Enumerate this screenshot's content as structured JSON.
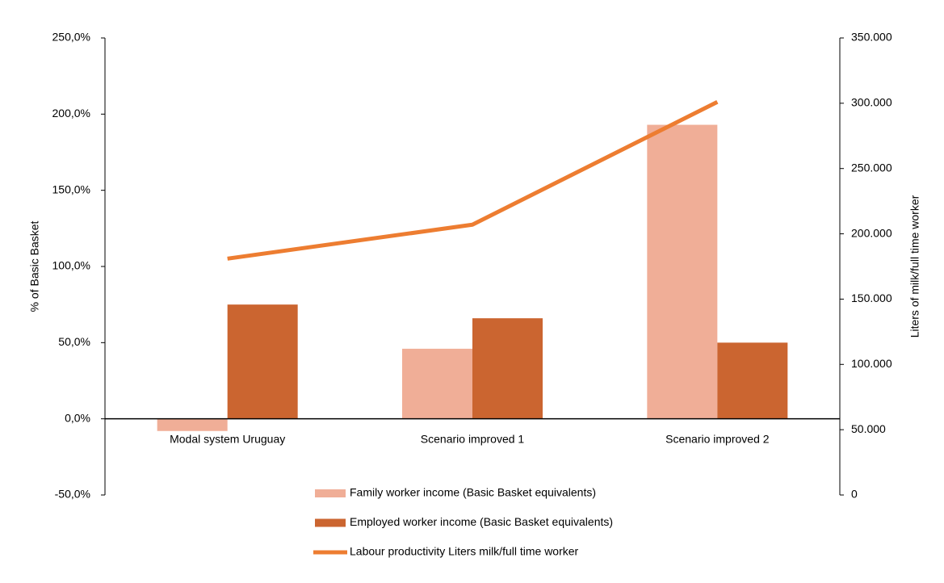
{
  "chart_data": {
    "type": "bar",
    "categories": [
      "Modal system Uruguay",
      "Scenario improved 1",
      "Scenario improved 2"
    ],
    "series": [
      {
        "name": "Family worker income (Basic Basket equivalents)",
        "color": "#f0ae97",
        "values": [
          -8,
          46,
          193
        ]
      },
      {
        "name": "Employed worker income (Basic Basket equivalents)",
        "color": "#cb6530",
        "values": [
          75,
          66,
          50
        ]
      },
      {
        "name": "Labour productivity Liters milk/full time worker",
        "color": "#ed7d31",
        "type": "line",
        "axis": "y2",
        "values": [
          181000,
          207000,
          301000
        ]
      }
    ],
    "y_label": "% of Basic Basket",
    "y2_label": "Liters of milk/full time worker",
    "ylim": [
      -50,
      250
    ],
    "yticks": [
      {
        "value": -50,
        "label": "-50,0%"
      },
      {
        "value": 0,
        "label": "0,0%"
      },
      {
        "value": 50,
        "label": "50,0%"
      },
      {
        "value": 100,
        "label": "100,0%"
      },
      {
        "value": 150,
        "label": "150,0%"
      },
      {
        "value": 200,
        "label": "200,0%"
      },
      {
        "value": 250,
        "label": "250,0%"
      }
    ],
    "y2lim": [
      0,
      350000
    ],
    "y2ticks": [
      0,
      {
        "value": 50000,
        "label": "50.000"
      },
      {
        "value": 100000,
        "label": "100.000"
      },
      {
        "value": 150000,
        "label": "150.000"
      },
      {
        "value": 200000,
        "label": "200.000"
      },
      {
        "value": 250000,
        "label": "250.000"
      },
      {
        "value": 300000,
        "label": "300.000"
      },
      {
        "value": 350000,
        "label": "350.000"
      }
    ],
    "legend": "bottom"
  }
}
